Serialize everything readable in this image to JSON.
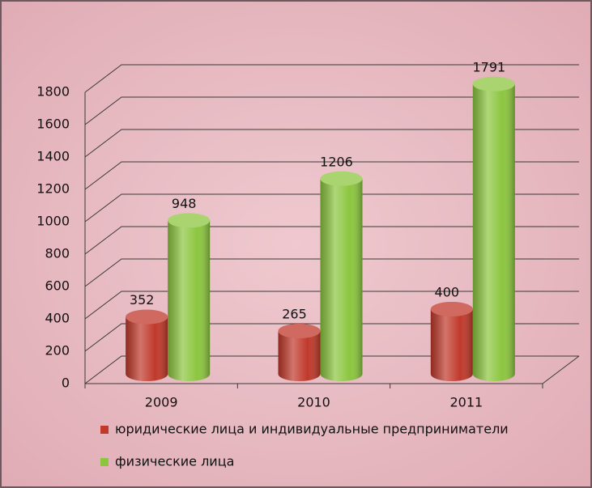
{
  "chart_data": {
    "type": "bar",
    "categories": [
      "2009",
      "2010",
      "2011"
    ],
    "series": [
      {
        "name": "юридические лица и индивидуальные предприниматели",
        "color": "#c0392b",
        "values": [
          352,
          265,
          400
        ]
      },
      {
        "name": "физические лица",
        "color": "#8cc63f",
        "values": [
          948,
          1206,
          1791
        ]
      }
    ],
    "ylim": [
      0,
      1800
    ],
    "yticks": [
      0,
      200,
      400,
      600,
      800,
      1000,
      1200,
      1400,
      1600,
      1800
    ],
    "grid": true
  }
}
